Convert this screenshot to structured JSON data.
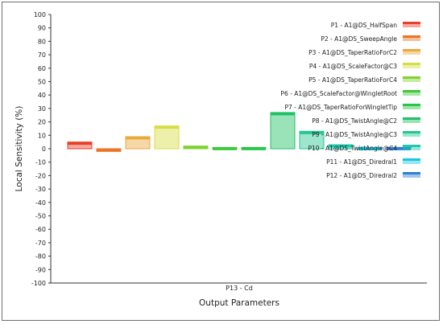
{
  "chart_data": {
    "type": "bar",
    "title": "",
    "xlabel": "Output Parameters",
    "ylabel": "Local Sensitivity (%)",
    "categories": [
      "P13 - Cd"
    ],
    "ylim": [
      -100,
      100
    ],
    "ytick_step": 10,
    "grid": false,
    "legend_position": "top-right",
    "series": [
      {
        "name": "P1 - A1@DS_HalfSpan",
        "value": 5,
        "color": "#e8412a"
      },
      {
        "name": "P2 - A1@DS_SweepAngle",
        "value": -2,
        "color": "#ec7424"
      },
      {
        "name": "P3 - A1@DS_TaperRatioForC2",
        "value": 9,
        "color": "#eba93c"
      },
      {
        "name": "P4 - A1@DS_ScaleFactor@C3",
        "value": 17,
        "color": "#d7dd45"
      },
      {
        "name": "P5 - A1@DS_TaperRatioForC4",
        "value": 2,
        "color": "#7fd32e"
      },
      {
        "name": "P6 - A1@DS_ScaleFactor@WingletRoot",
        "value": 1,
        "color": "#3ec83a"
      },
      {
        "name": "P7 - A1@DS_TaperRatioForWingletTip",
        "value": 1,
        "color": "#27c548"
      },
      {
        "name": "P8 - A1@DS_TwistAngle@C2",
        "value": 27,
        "color": "#1ec164"
      },
      {
        "name": "P9 - A1@DS_TwistAngle@C3",
        "value": 13,
        "color": "#22c78d"
      },
      {
        "name": "P10 - A1@DS_TwistAngle@C4",
        "value": 3,
        "color": "#1fc9ac"
      },
      {
        "name": "P11 - A1@DS_Diredral1",
        "value": 1,
        "color": "#19c6e0"
      },
      {
        "name": "P12 - A1@DS_Diredral2",
        "value": 1,
        "color": "#2d7fd4"
      }
    ]
  }
}
